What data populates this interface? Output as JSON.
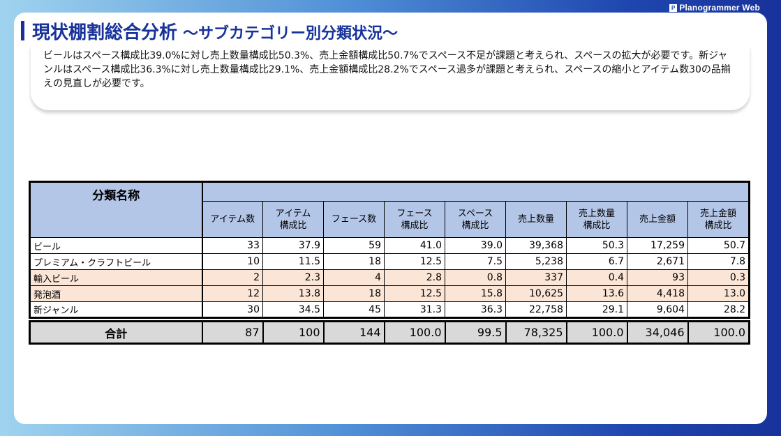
{
  "brand": {
    "name": "Planogrammer Web"
  },
  "title": {
    "main": "現状棚割総合分析",
    "sub": "～サブカテゴリー別分類状況～"
  },
  "summary": "ビールはスペース構成比39.0%に対し売上数量構成比50.3%、売上金額構成比50.7%でスペース不足が課題と考えられ、スペースの拡大が必要です。新ジャンルはスペース構成比36.3%に対し売上数量構成比29.1%、売上金額構成比28.2%でスペース過多が課題と考えられ、スペースの縮小とアイテム数30の品揃えの見直しが必要です。",
  "table": {
    "name_header": "分類名称",
    "columns": [
      [
        "アイテム数"
      ],
      [
        "アイテム",
        "構成比"
      ],
      [
        "フェース数"
      ],
      [
        "フェース",
        "構成比"
      ],
      [
        "スペース",
        "構成比"
      ],
      [
        "売上数量"
      ],
      [
        "売上数量",
        "構成比"
      ],
      [
        "売上金額"
      ],
      [
        "売上金額",
        "構成比"
      ]
    ],
    "rows": [
      {
        "name": "ビール",
        "values": [
          "33",
          "37.9",
          "59",
          "41.0",
          "39.0",
          "39,368",
          "50.3",
          "17,259",
          "50.7"
        ],
        "highlight": false
      },
      {
        "name": "プレミアム・クラフトビール",
        "values": [
          "10",
          "11.5",
          "18",
          "12.5",
          "7.5",
          "5,238",
          "6.7",
          "2,671",
          "7.8"
        ],
        "highlight": false
      },
      {
        "name": "輸入ビール",
        "values": [
          "2",
          "2.3",
          "4",
          "2.8",
          "0.8",
          "337",
          "0.4",
          "93",
          "0.3"
        ],
        "highlight": true
      },
      {
        "name": "発泡酒",
        "values": [
          "12",
          "13.8",
          "18",
          "12.5",
          "15.8",
          "10,625",
          "13.6",
          "4,418",
          "13.0"
        ],
        "highlight": true
      },
      {
        "name": "新ジャンル",
        "values": [
          "30",
          "34.5",
          "45",
          "31.3",
          "36.3",
          "22,758",
          "29.1",
          "9,604",
          "28.2"
        ],
        "highlight": false
      }
    ],
    "total": {
      "name": "合計",
      "values": [
        "87",
        "100",
        "144",
        "100.0",
        "99.5",
        "78,325",
        "100.0",
        "34,046",
        "100.0"
      ]
    }
  }
}
